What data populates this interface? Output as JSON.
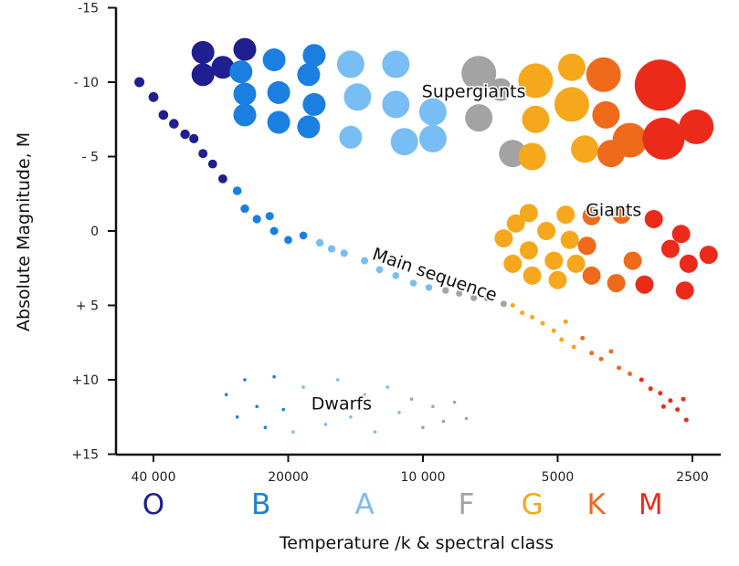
{
  "chart_data": {
    "type": "scatter",
    "title": "",
    "xlabel": "Temperature /k & spectral class",
    "ylabel": "Absolute Magnitude, M",
    "x_scale": "log-reversed",
    "xlim": [
      45000,
      2300
    ],
    "ylim": [
      -15,
      15
    ],
    "y_ticks": [
      {
        "value": -15,
        "label": "-15"
      },
      {
        "value": -10,
        "label": "- 10"
      },
      {
        "value": -5,
        "label": "- 5"
      },
      {
        "value": 0,
        "label": "0"
      },
      {
        "value": 5,
        "label": "+ 5"
      },
      {
        "value": 10,
        "label": "+10"
      },
      {
        "value": 15,
        "label": "+15"
      }
    ],
    "x_ticks": [
      {
        "value": 40000,
        "label": "40 000"
      },
      {
        "value": 20000,
        "label": "20000"
      },
      {
        "value": 10000,
        "label": "10 000"
      },
      {
        "value": 5000,
        "label": "5000"
      },
      {
        "value": 2500,
        "label": "2500"
      }
    ],
    "spectral_classes": [
      {
        "letter": "O",
        "color": "#1f1f8f",
        "temperature": 40000
      },
      {
        "letter": "B",
        "color": "#1a7fe0",
        "temperature": 23000
      },
      {
        "letter": "A",
        "color": "#78bdf3",
        "temperature": 13500
      },
      {
        "letter": "F",
        "color": "#a3a3a3",
        "temperature": 8000
      },
      {
        "letter": "G",
        "color": "#f5a81c",
        "temperature": 5700
      },
      {
        "letter": "K",
        "color": "#f06a1c",
        "temperature": 4100
      },
      {
        "letter": "M",
        "color": "#ec2a1a",
        "temperature": 3100
      }
    ],
    "region_labels": [
      {
        "text": "Supergiants",
        "temperature": 7700,
        "magnitude": -9
      },
      {
        "text": "Giants",
        "temperature": 3750,
        "magnitude": -1
      },
      {
        "text": "Main sequence",
        "temperature": 9500,
        "magnitude": 3.3
      },
      {
        "text": "Dwarfs",
        "temperature": 15200,
        "magnitude": 12
      }
    ],
    "series": [
      {
        "region": "supergiants",
        "points": [
          {
            "t": 31000,
            "m": -12,
            "c": "#1f1f8f",
            "s": 2
          },
          {
            "t": 31000,
            "m": -10.5,
            "c": "#1f1f8f",
            "s": 2
          },
          {
            "t": 28000,
            "m": -11,
            "c": "#1f1f8f",
            "s": 2
          },
          {
            "t": 25000,
            "m": -12.2,
            "c": "#1f1f8f",
            "s": 2
          },
          {
            "t": 25500,
            "m": -10.7,
            "c": "#1a7fe0",
            "s": 2
          },
          {
            "t": 25000,
            "m": -9.2,
            "c": "#1a7fe0",
            "s": 2
          },
          {
            "t": 25000,
            "m": -7.8,
            "c": "#1a7fe0",
            "s": 2
          },
          {
            "t": 21500,
            "m": -11.5,
            "c": "#1a7fe0",
            "s": 2
          },
          {
            "t": 21000,
            "m": -9.3,
            "c": "#1a7fe0",
            "s": 2
          },
          {
            "t": 21000,
            "m": -7.3,
            "c": "#1a7fe0",
            "s": 2
          },
          {
            "t": 17500,
            "m": -11.8,
            "c": "#1a7fe0",
            "s": 2
          },
          {
            "t": 18000,
            "m": -10.5,
            "c": "#1a7fe0",
            "s": 2
          },
          {
            "t": 17500,
            "m": -8.5,
            "c": "#1a7fe0",
            "s": 2
          },
          {
            "t": 18000,
            "m": -7,
            "c": "#1a7fe0",
            "s": 2
          },
          {
            "t": 14500,
            "m": -11.2,
            "c": "#78bdf3",
            "s": 3
          },
          {
            "t": 14000,
            "m": -9,
            "c": "#78bdf3",
            "s": 3
          },
          {
            "t": 14500,
            "m": -6.3,
            "c": "#78bdf3",
            "s": 2
          },
          {
            "t": 11500,
            "m": -11.2,
            "c": "#78bdf3",
            "s": 3
          },
          {
            "t": 11500,
            "m": -8.5,
            "c": "#78bdf3",
            "s": 3
          },
          {
            "t": 11000,
            "m": -6,
            "c": "#78bdf3",
            "s": 3
          },
          {
            "t": 9500,
            "m": -8,
            "c": "#78bdf3",
            "s": 3
          },
          {
            "t": 9500,
            "m": -6.2,
            "c": "#78bdf3",
            "s": 3
          },
          {
            "t": 7500,
            "m": -10.6,
            "c": "#a3a3a3",
            "s": 4
          },
          {
            "t": 7500,
            "m": -7.6,
            "c": "#a3a3a3",
            "s": 3
          },
          {
            "t": 6700,
            "m": -9.5,
            "c": "#a3a3a3",
            "s": 2
          },
          {
            "t": 6300,
            "m": -5.2,
            "c": "#a3a3a3",
            "s": 3
          },
          {
            "t": 5600,
            "m": -10.1,
            "c": "#f5a81c",
            "s": 4
          },
          {
            "t": 5600,
            "m": -7.5,
            "c": "#f5a81c",
            "s": 3
          },
          {
            "t": 5700,
            "m": -5,
            "c": "#f5a81c",
            "s": 3
          },
          {
            "t": 4650,
            "m": -11,
            "c": "#f5a81c",
            "s": 3
          },
          {
            "t": 4650,
            "m": -8.5,
            "c": "#f5a81c",
            "s": 4
          },
          {
            "t": 4350,
            "m": -5.5,
            "c": "#f5a81c",
            "s": 3
          },
          {
            "t": 3950,
            "m": -10.5,
            "c": "#f06a1c",
            "s": 4
          },
          {
            "t": 3900,
            "m": -7.8,
            "c": "#f06a1c",
            "s": 3
          },
          {
            "t": 3800,
            "m": -5.2,
            "c": "#f06a1c",
            "s": 3
          },
          {
            "t": 3450,
            "m": -6.1,
            "c": "#f06a1c",
            "s": 4
          },
          {
            "t": 2950,
            "m": -9.8,
            "c": "#ec2a1a",
            "s": 6
          },
          {
            "t": 2900,
            "m": -6.2,
            "c": "#ec2a1a",
            "s": 5
          },
          {
            "t": 2450,
            "m": -7,
            "c": "#ec2a1a",
            "s": 4
          }
        ]
      },
      {
        "region": "giants",
        "points": [
          {
            "t": 5800,
            "m": -1.2,
            "c": "#f5a81c",
            "s": 1
          },
          {
            "t": 6200,
            "m": -0.5,
            "c": "#f5a81c",
            "s": 1
          },
          {
            "t": 6600,
            "m": 0.5,
            "c": "#f5a81c",
            "s": 1
          },
          {
            "t": 5300,
            "m": 0,
            "c": "#f5a81c",
            "s": 1
          },
          {
            "t": 5800,
            "m": 1.3,
            "c": "#f5a81c",
            "s": 1
          },
          {
            "t": 6300,
            "m": 2.2,
            "c": "#f5a81c",
            "s": 1
          },
          {
            "t": 5100,
            "m": 2,
            "c": "#f5a81c",
            "s": 1
          },
          {
            "t": 5700,
            "m": 3,
            "c": "#f5a81c",
            "s": 1
          },
          {
            "t": 5000,
            "m": 3.3,
            "c": "#f5a81c",
            "s": 1
          },
          {
            "t": 4800,
            "m": -1.1,
            "c": "#f5a81c",
            "s": 1
          },
          {
            "t": 4700,
            "m": 0.6,
            "c": "#f5a81c",
            "s": 1
          },
          {
            "t": 4550,
            "m": 2.2,
            "c": "#f5a81c",
            "s": 1
          },
          {
            "t": 4200,
            "m": -1,
            "c": "#f06a1c",
            "s": 1
          },
          {
            "t": 4300,
            "m": 1,
            "c": "#f06a1c",
            "s": 1
          },
          {
            "t": 4200,
            "m": 3,
            "c": "#f06a1c",
            "s": 1
          },
          {
            "t": 3600,
            "m": -1.1,
            "c": "#f06a1c",
            "s": 1
          },
          {
            "t": 3700,
            "m": 3.5,
            "c": "#f06a1c",
            "s": 1
          },
          {
            "t": 3400,
            "m": 2,
            "c": "#f06a1c",
            "s": 1
          },
          {
            "t": 3200,
            "m": 3.6,
            "c": "#ec2a1a",
            "s": 1
          },
          {
            "t": 3050,
            "m": -0.8,
            "c": "#ec2a1a",
            "s": 1
          },
          {
            "t": 2800,
            "m": 1.2,
            "c": "#ec2a1a",
            "s": 1
          },
          {
            "t": 2650,
            "m": 0.2,
            "c": "#ec2a1a",
            "s": 1
          },
          {
            "t": 2550,
            "m": 2.2,
            "c": "#ec2a1a",
            "s": 1
          },
          {
            "t": 2300,
            "m": 1.6,
            "c": "#ec2a1a",
            "s": 1
          },
          {
            "t": 2600,
            "m": 4,
            "c": "#ec2a1a",
            "s": 1
          }
        ]
      },
      {
        "region": "main_sequence",
        "points": [
          {
            "t": 43000,
            "m": -10,
            "c": "#1f1f8f",
            "s": 1
          },
          {
            "t": 40000,
            "m": -9,
            "c": "#1f1f8f",
            "s": 1
          },
          {
            "t": 38000,
            "m": -7.8,
            "c": "#1f1f8f",
            "s": 1
          },
          {
            "t": 36000,
            "m": -7.2,
            "c": "#1f1f8f",
            "s": 1
          },
          {
            "t": 34000,
            "m": -6.5,
            "c": "#1f1f8f",
            "s": 1
          },
          {
            "t": 32500,
            "m": -6.2,
            "c": "#1f1f8f",
            "s": 1
          },
          {
            "t": 31000,
            "m": -5.2,
            "c": "#1f1f8f",
            "s": 1
          },
          {
            "t": 29500,
            "m": -4.5,
            "c": "#1f1f8f",
            "s": 1
          },
          {
            "t": 28000,
            "m": -3.5,
            "c": "#1f1f8f",
            "s": 1
          },
          {
            "t": 26000,
            "m": -2.7,
            "c": "#1a7fe0",
            "s": 1
          },
          {
            "t": 25000,
            "m": -1.5,
            "c": "#1a7fe0",
            "s": 1
          },
          {
            "t": 23500,
            "m": -0.8,
            "c": "#1a7fe0",
            "s": 1
          },
          {
            "t": 22000,
            "m": -1,
            "c": "#1a7fe0",
            "s": 1
          },
          {
            "t": 21500,
            "m": 0,
            "c": "#1a7fe0",
            "s": 1
          },
          {
            "t": 20000,
            "m": 0.6,
            "c": "#1a7fe0",
            "s": 1
          },
          {
            "t": 18500,
            "m": 0.3,
            "c": "#1a7fe0",
            "s": 1
          },
          {
            "t": 17000,
            "m": 0.8,
            "c": "#78bdf3",
            "s": 1
          },
          {
            "t": 16000,
            "m": 1.2,
            "c": "#78bdf3",
            "s": 1
          },
          {
            "t": 15000,
            "m": 1.5,
            "c": "#78bdf3",
            "s": 1
          },
          {
            "t": 13500,
            "m": 2,
            "c": "#78bdf3",
            "s": 1
          },
          {
            "t": 12500,
            "m": 2.6,
            "c": "#78bdf3",
            "s": 1
          },
          {
            "t": 11500,
            "m": 3,
            "c": "#78bdf3",
            "s": 1
          },
          {
            "t": 10500,
            "m": 3.5,
            "c": "#78bdf3",
            "s": 1
          },
          {
            "t": 9700,
            "m": 3.8,
            "c": "#78bdf3",
            "s": 1
          },
          {
            "t": 8900,
            "m": 4,
            "c": "#a3a3a3",
            "s": 1
          },
          {
            "t": 8300,
            "m": 4.2,
            "c": "#a3a3a3",
            "s": 1
          },
          {
            "t": 7700,
            "m": 4.5,
            "c": "#a3a3a3",
            "s": 1
          },
          {
            "t": 7200,
            "m": 4.5,
            "c": "#a3a3a3",
            "s": 1
          },
          {
            "t": 6600,
            "m": 4.9,
            "c": "#a3a3a3",
            "s": 1
          }
        ]
      },
      {
        "region": "main_sequence_small",
        "points": [
          {
            "t": 6300,
            "m": 5,
            "c": "#f5a81c",
            "s": 0
          },
          {
            "t": 6000,
            "m": 5.5,
            "c": "#f5a81c",
            "s": 0
          },
          {
            "t": 5700,
            "m": 5.8,
            "c": "#f5a81c",
            "s": 0
          },
          {
            "t": 5400,
            "m": 6.2,
            "c": "#f5a81c",
            "s": 0
          },
          {
            "t": 5100,
            "m": 6.7,
            "c": "#f5a81c",
            "s": 0
          },
          {
            "t": 4900,
            "m": 7.3,
            "c": "#f5a81c",
            "s": 0
          },
          {
            "t": 4800,
            "m": 6.1,
            "c": "#f5a81c",
            "s": 0
          },
          {
            "t": 4600,
            "m": 7.8,
            "c": "#f5a81c",
            "s": 0
          },
          {
            "t": 4400,
            "m": 7.2,
            "c": "#f06a1c",
            "s": 0
          },
          {
            "t": 4200,
            "m": 8.2,
            "c": "#f06a1c",
            "s": 0
          },
          {
            "t": 4000,
            "m": 8.6,
            "c": "#f06a1c",
            "s": 0
          },
          {
            "t": 3800,
            "m": 8.1,
            "c": "#f06a1c",
            "s": 0
          },
          {
            "t": 3650,
            "m": 9.2,
            "c": "#f06a1c",
            "s": 0
          },
          {
            "t": 3450,
            "m": 9.6,
            "c": "#f06a1c",
            "s": 0
          },
          {
            "t": 3250,
            "m": 10,
            "c": "#ec2a1a",
            "s": 0
          },
          {
            "t": 3100,
            "m": 10.6,
            "c": "#ec2a1a",
            "s": 0
          },
          {
            "t": 2950,
            "m": 10.9,
            "c": "#ec2a1a",
            "s": 0
          },
          {
            "t": 2800,
            "m": 11.4,
            "c": "#ec2a1a",
            "s": 0
          },
          {
            "t": 2700,
            "m": 12,
            "c": "#ec2a1a",
            "s": 0
          },
          {
            "t": 2580,
            "m": 12.7,
            "c": "#ec2a1a",
            "s": 0
          },
          {
            "t": 2900,
            "m": 11.8,
            "c": "#ec2a1a",
            "s": 0
          },
          {
            "t": 2620,
            "m": 11.3,
            "c": "#ec2a1a",
            "s": 0
          }
        ]
      },
      {
        "region": "dwarfs",
        "points": [
          {
            "t": 27500,
            "m": 11,
            "c": "#1a7fe0",
            "s": 0
          },
          {
            "t": 26000,
            "m": 12.5,
            "c": "#1a7fe0",
            "s": 0
          },
          {
            "t": 25000,
            "m": 10,
            "c": "#1a7fe0",
            "s": 0
          },
          {
            "t": 23500,
            "m": 11.8,
            "c": "#1a7fe0",
            "s": 0
          },
          {
            "t": 22500,
            "m": 13.2,
            "c": "#1a7fe0",
            "s": 0
          },
          {
            "t": 21500,
            "m": 9.8,
            "c": "#1a7fe0",
            "s": 0
          },
          {
            "t": 20500,
            "m": 12,
            "c": "#1a7fe0",
            "s": 0
          },
          {
            "t": 19500,
            "m": 13.5,
            "c": "#78bdf3",
            "s": 0
          },
          {
            "t": 18500,
            "m": 10.5,
            "c": "#78bdf3",
            "s": 0
          },
          {
            "t": 17500,
            "m": 11.5,
            "c": "#78bdf3",
            "s": 0
          },
          {
            "t": 16500,
            "m": 13,
            "c": "#78bdf3",
            "s": 0
          },
          {
            "t": 15500,
            "m": 10,
            "c": "#78bdf3",
            "s": 0
          },
          {
            "t": 14500,
            "m": 12.5,
            "c": "#78bdf3",
            "s": 0
          },
          {
            "t": 13500,
            "m": 11,
            "c": "#78bdf3",
            "s": 0
          },
          {
            "t": 12800,
            "m": 13.5,
            "c": "#78bdf3",
            "s": 0
          },
          {
            "t": 12000,
            "m": 10.5,
            "c": "#78bdf3",
            "s": 0
          },
          {
            "t": 11300,
            "m": 12.2,
            "c": "#78bdf3",
            "s": 0
          },
          {
            "t": 10600,
            "m": 11.3,
            "c": "#a3a3a3",
            "s": 0
          },
          {
            "t": 10000,
            "m": 13.2,
            "c": "#a3a3a3",
            "s": 0
          },
          {
            "t": 9500,
            "m": 11.8,
            "c": "#a3a3a3",
            "s": 0
          },
          {
            "t": 9000,
            "m": 12.8,
            "c": "#a3a3a3",
            "s": 0
          },
          {
            "t": 8500,
            "m": 11.5,
            "c": "#a3a3a3",
            "s": 0
          },
          {
            "t": 8000,
            "m": 12.6,
            "c": "#a3a3a3",
            "s": 0
          }
        ]
      }
    ]
  }
}
